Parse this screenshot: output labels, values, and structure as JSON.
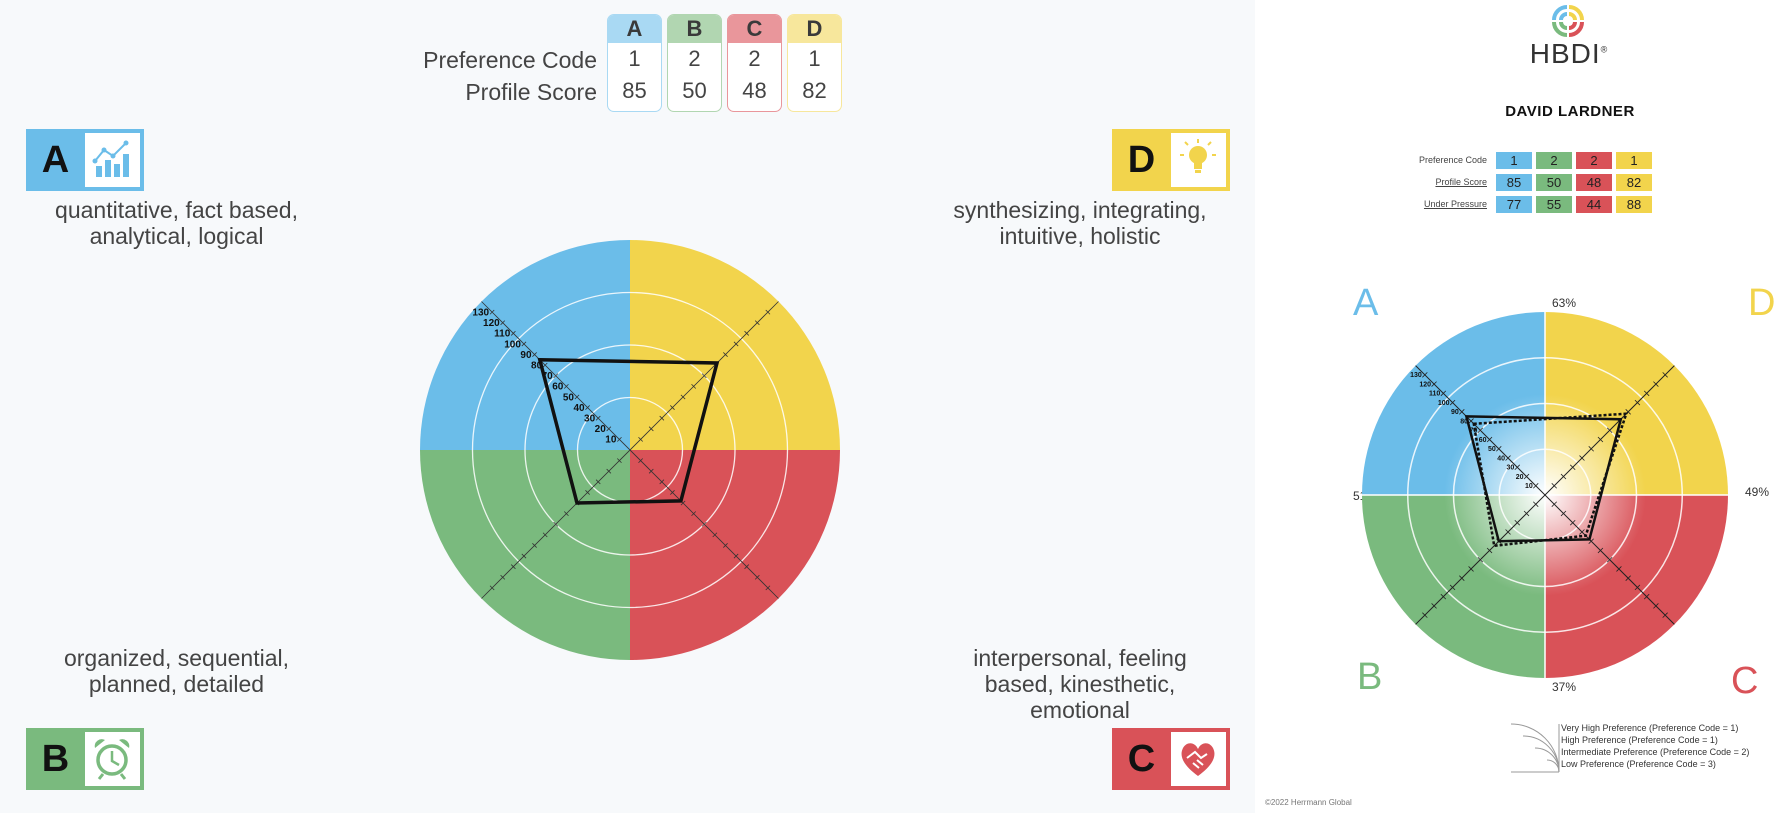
{
  "score_table": {
    "row_labels": {
      "preference": "Preference Code",
      "profile": "Profile Score"
    },
    "columns": [
      {
        "key": "A",
        "pref": "1",
        "score": "85",
        "color": "#6bbde9",
        "light": "#a9d9f3"
      },
      {
        "key": "B",
        "pref": "2",
        "score": "50",
        "color": "#7aba7e",
        "light": "#b1d6b1"
      },
      {
        "key": "C",
        "pref": "2",
        "score": "48",
        "color": "#d95258",
        "light": "#e9969b"
      },
      {
        "key": "D",
        "pref": "1",
        "score": "82",
        "color": "#f2d44c",
        "light": "#f7e79c"
      }
    ]
  },
  "quadrants": {
    "A": {
      "letter": "A",
      "icon": "bar-chart-icon",
      "line1": "quantitative, fact based,",
      "line2": "analytical, logical"
    },
    "B": {
      "letter": "B",
      "icon": "alarm-clock-icon",
      "line1": "organized, sequential,",
      "line2": "planned, detailed"
    },
    "C": {
      "letter": "C",
      "icon": "handshake-heart-icon",
      "line1": "interpersonal, feeling",
      "line2": "based, kinesthetic,",
      "line3": "emotional"
    },
    "D": {
      "letter": "D",
      "icon": "lightbulb-icon",
      "line1": "synthesizing, integrating,",
      "line2": "intuitive, holistic"
    }
  },
  "chart_data": [
    {
      "type": "radar",
      "axes": [
        "A",
        "D",
        "C",
        "B"
      ],
      "tick_labels": [
        "10",
        "20",
        "30",
        "40",
        "50",
        "60",
        "70",
        "80",
        "90",
        "100",
        "110",
        "120",
        "130"
      ],
      "range": [
        0,
        140
      ],
      "series": [
        {
          "values": [
            85,
            82,
            48,
            50
          ]
        }
      ]
    },
    {
      "type": "radar",
      "axes": [
        "A",
        "D",
        "C",
        "B"
      ],
      "tick_labels": [
        "10",
        "20",
        "30",
        "40",
        "50",
        "60",
        "70",
        "80",
        "90",
        "100",
        "110",
        "120",
        "130"
      ],
      "range": [
        0,
        140
      ],
      "series": [
        {
          "values": [
            85,
            82,
            48,
            50
          ],
          "style": "solid"
        },
        {
          "values": [
            77,
            88,
            44,
            55
          ],
          "style": "dotted"
        }
      ],
      "edge_percentages": {
        "top": "63%",
        "right": "49%",
        "bottom": "37%",
        "left": "51%"
      }
    }
  ],
  "report": {
    "logo_text": "HBDI",
    "logo_mark": "®",
    "name": "DAVID LARDNER",
    "mini_table": {
      "row_labels": [
        "Preference Code",
        "Profile Score",
        "Under Pressure"
      ],
      "rows": [
        [
          "1",
          "2",
          "2",
          "1"
        ],
        [
          "85",
          "50",
          "48",
          "82"
        ],
        [
          "77",
          "55",
          "44",
          "88"
        ]
      ]
    },
    "quadrant_letters": [
      "A",
      "D",
      "B",
      "C"
    ],
    "legend": [
      "Very High Preference (Preference Code = 1)",
      "High Preference (Preference Code = 1)",
      "Intermediate Preference (Preference Code = 2)",
      "Low Preference (Preference Code = 3)"
    ],
    "copyright": "©2022 Herrmann Global"
  },
  "colors": {
    "A": "#6bbde9",
    "B": "#7aba7e",
    "C": "#d95258",
    "D": "#f2d44c"
  }
}
